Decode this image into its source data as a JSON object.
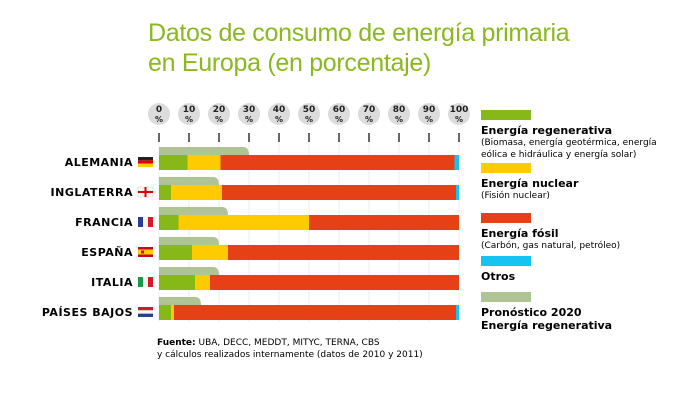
{
  "title": {
    "line1": "Datos de consumo de energía primaria",
    "line2": "en Europa (en porcentaje)"
  },
  "chart_data": {
    "type": "bar",
    "orientation": "horizontal",
    "stacked": true,
    "title": "Datos de consumo de energía primaria en Europa (en porcentaje)",
    "xlabel": "",
    "ylabel": "",
    "xlim": [
      0,
      100
    ],
    "x_ticks": [
      "0 %",
      "10 %",
      "20 %",
      "30 %",
      "40 %",
      "50 %",
      "60 %",
      "70 %",
      "80 %",
      "90 %",
      "100 %"
    ],
    "grid": true,
    "legend_position": "right",
    "categories": [
      "ALEMANIA",
      "INGLATERRA",
      "FRANCIA",
      "ESPAÑA",
      "ITALIA",
      "PAÍSES BAJOS"
    ],
    "flags": [
      "germany-flag",
      "england-flag",
      "france-flag",
      "spain-flag",
      "italy-flag",
      "netherlands-flag"
    ],
    "series": [
      {
        "name": "Energía regenerativa",
        "color": "#86b817",
        "values": [
          9.5,
          4,
          6.5,
          11,
          12,
          4
        ]
      },
      {
        "name": "Energía nuclear",
        "color": "#fecb00",
        "values": [
          11,
          17,
          43.5,
          12,
          5,
          1
        ]
      },
      {
        "name": "Energía fósil",
        "color": "#e54016",
        "values": [
          78,
          78,
          50,
          77,
          83,
          94
        ]
      },
      {
        "name": "Otros",
        "color": "#17c3f2",
        "values": [
          1.5,
          1,
          0,
          0,
          0,
          1
        ]
      }
    ],
    "forecast": {
      "name": "Pronóstico 2020 Energía regenerativa",
      "color": "#afc495",
      "values": [
        30,
        20,
        23,
        20,
        20,
        14
      ]
    }
  },
  "legend": [
    {
      "label": "Energía regenerativa",
      "sub": [
        "(Biomasa, energía geotérmica, energía",
        "eólica e hidráulica y energía solar)"
      ],
      "color": "#86b817"
    },
    {
      "label": "Energía nuclear",
      "sub": [
        "(Fisión nuclear)"
      ],
      "color": "#fecb00"
    },
    {
      "label": "Energía fósil",
      "sub": [
        "(Carbón, gas natural, petróleo)"
      ],
      "color": "#e54016"
    },
    {
      "label": "Otros",
      "sub": [],
      "color": "#17c3f2"
    },
    {
      "label": "Pronóstico 2020",
      "label2": "Energía regenerativa",
      "sub": [],
      "color": "#afc495"
    }
  ],
  "source": {
    "label": "Fuente:",
    "text": " UBA, DECC, MEDDT, MITYC, TERNA, CBS",
    "line2": "y cálculos realizados internamente (datos de 2010 y 2011)"
  }
}
